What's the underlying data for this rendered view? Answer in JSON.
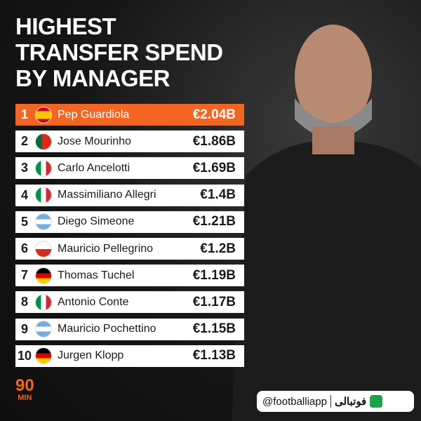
{
  "header": {
    "title_lines": [
      "HIGHEST",
      "TRANSFER SPEND",
      "BY MANAGER"
    ]
  },
  "table": {
    "rows": [
      [
        "1",
        "Pep Guardiola",
        "€2.04B"
      ],
      [
        "2",
        "Jose Mourinho",
        "€1.86B"
      ],
      [
        "3",
        "Carlo Ancelotti",
        "€1.69B"
      ],
      [
        "4",
        "Massimiliano Allegri",
        "€1.4B"
      ],
      [
        "5",
        "Diego Simeone",
        "€1.21B"
      ],
      [
        "6",
        "Mauricio Pellegrino",
        "€1.2B"
      ],
      [
        "7",
        "Thomas Tuchel",
        "€1.19B"
      ],
      [
        "8",
        "Antonio Conte",
        "€1.17B"
      ],
      [
        "9",
        "Mauricio Pochettino",
        "€1.15B"
      ],
      [
        "10",
        "Jurgen Klopp",
        "€1.13B"
      ]
    ]
  },
  "footer": {
    "logo_top": "90",
    "logo_bottom": "MIN",
    "handle": "@footballiapp",
    "brand": "فوتبالی"
  }
}
